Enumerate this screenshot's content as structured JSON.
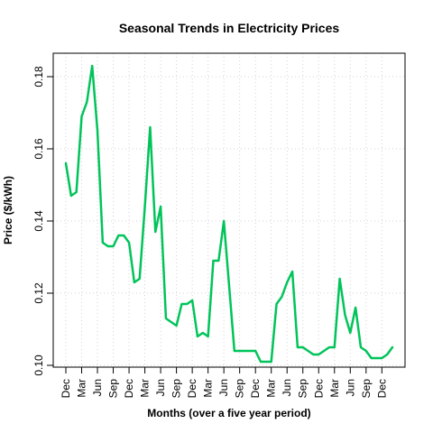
{
  "chart_data": {
    "type": "line",
    "title": "Seasonal Trends in Electricity Prices",
    "xlabel": "Months (over a five year period)",
    "ylabel": "Price ($/kWh)",
    "x_tick_labels": [
      "Dec",
      "Mar",
      "Jun",
      "Sep",
      "Dec",
      "Mar",
      "Jun",
      "Sep",
      "Dec",
      "Mar",
      "Jun",
      "Sep",
      "Dec",
      "Mar",
      "Jun",
      "Sep",
      "Dec",
      "Mar",
      "Jun",
      "Sep",
      "Dec"
    ],
    "y_ticks": [
      0.1,
      0.12,
      0.14,
      0.16,
      0.18
    ],
    "ylim": [
      0.0995,
      0.1865
    ],
    "grid": true,
    "line_color": "#00c45a",
    "series": [
      {
        "values": [
          0.156,
          0.147,
          0.148,
          0.169,
          0.173,
          0.183,
          0.165,
          0.134,
          0.133,
          0.133,
          0.136,
          0.136,
          0.134,
          0.123,
          0.124,
          0.144,
          0.166,
          0.137,
          0.144,
          0.113,
          0.112,
          0.111,
          0.117,
          0.117,
          0.118,
          0.108,
          0.109,
          0.108,
          0.129,
          0.129,
          0.14,
          0.122,
          0.104,
          0.104,
          0.104,
          0.104,
          0.104,
          0.101,
          0.101,
          0.101,
          0.117,
          0.119,
          0.123,
          0.126,
          0.105,
          0.105,
          0.104,
          0.103,
          0.103,
          0.104,
          0.105,
          0.105,
          0.124,
          0.114,
          0.109,
          0.116,
          0.105,
          0.104,
          0.102,
          0.102,
          0.102,
          0.103,
          0.105
        ]
      }
    ]
  }
}
